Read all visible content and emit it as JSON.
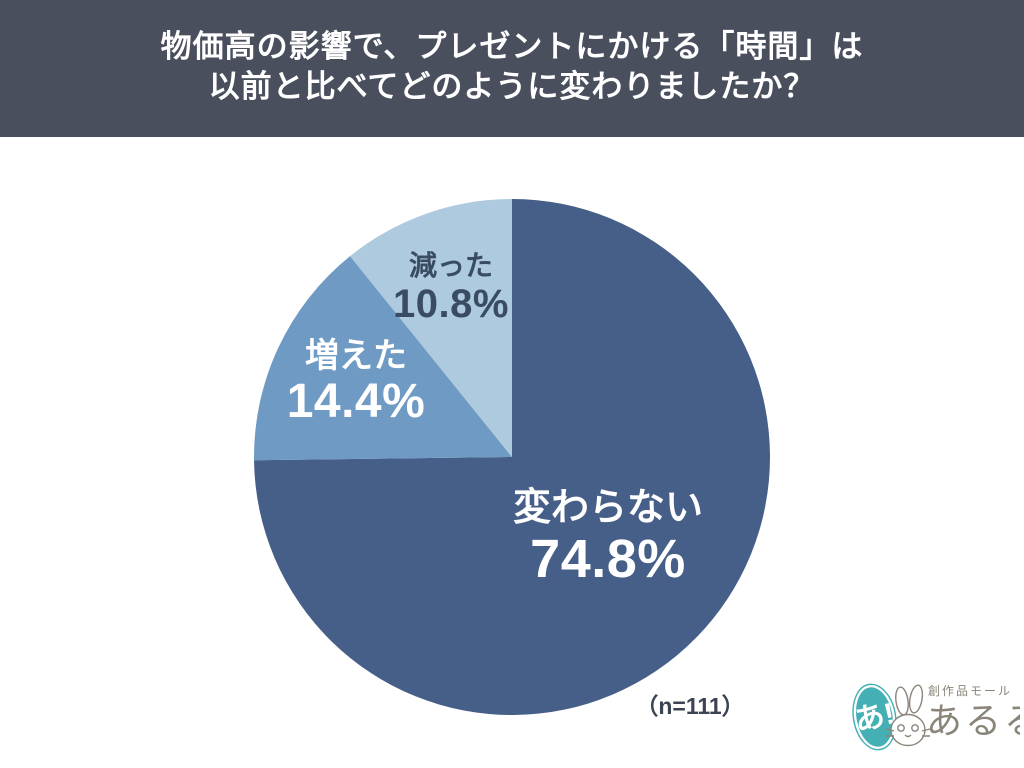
{
  "header": {
    "title_line1": "物価高の影響で、プレゼントにかける「時間」は",
    "title_line2": "以前と比べてどのように変わりましたか？",
    "bg_color": "#4a4f5e",
    "text_color": "#ffffff"
  },
  "chart_data": {
    "type": "pie",
    "title": "物価高の影響で、プレゼントにかける「時間」は以前と比べてどのように変わりましたか？",
    "note": "（n=111）",
    "start_angle_deg": 0,
    "direction": "clockwise",
    "total_pct": 100,
    "legend_position": "labels-inside-slices",
    "segments": [
      {
        "label": "変わらない",
        "value_pct": 74.8,
        "value_label": "74.8%",
        "color": "#465f88",
        "text_color": "#ffffff"
      },
      {
        "label": "増えた",
        "value_pct": 14.4,
        "value_label": "14.4%",
        "color": "#6f9ac4",
        "text_color": "#ffffff"
      },
      {
        "label": "減った",
        "value_pct": 10.8,
        "value_label": "10.8%",
        "color": "#adcade",
        "text_color": "#3a4c61"
      }
    ]
  },
  "logo": {
    "bubble_text": "あ!",
    "bubble_color": "#44afb4",
    "small_text": "創作品モール",
    "main_text": "あるる",
    "text_color": "#8b8479"
  }
}
